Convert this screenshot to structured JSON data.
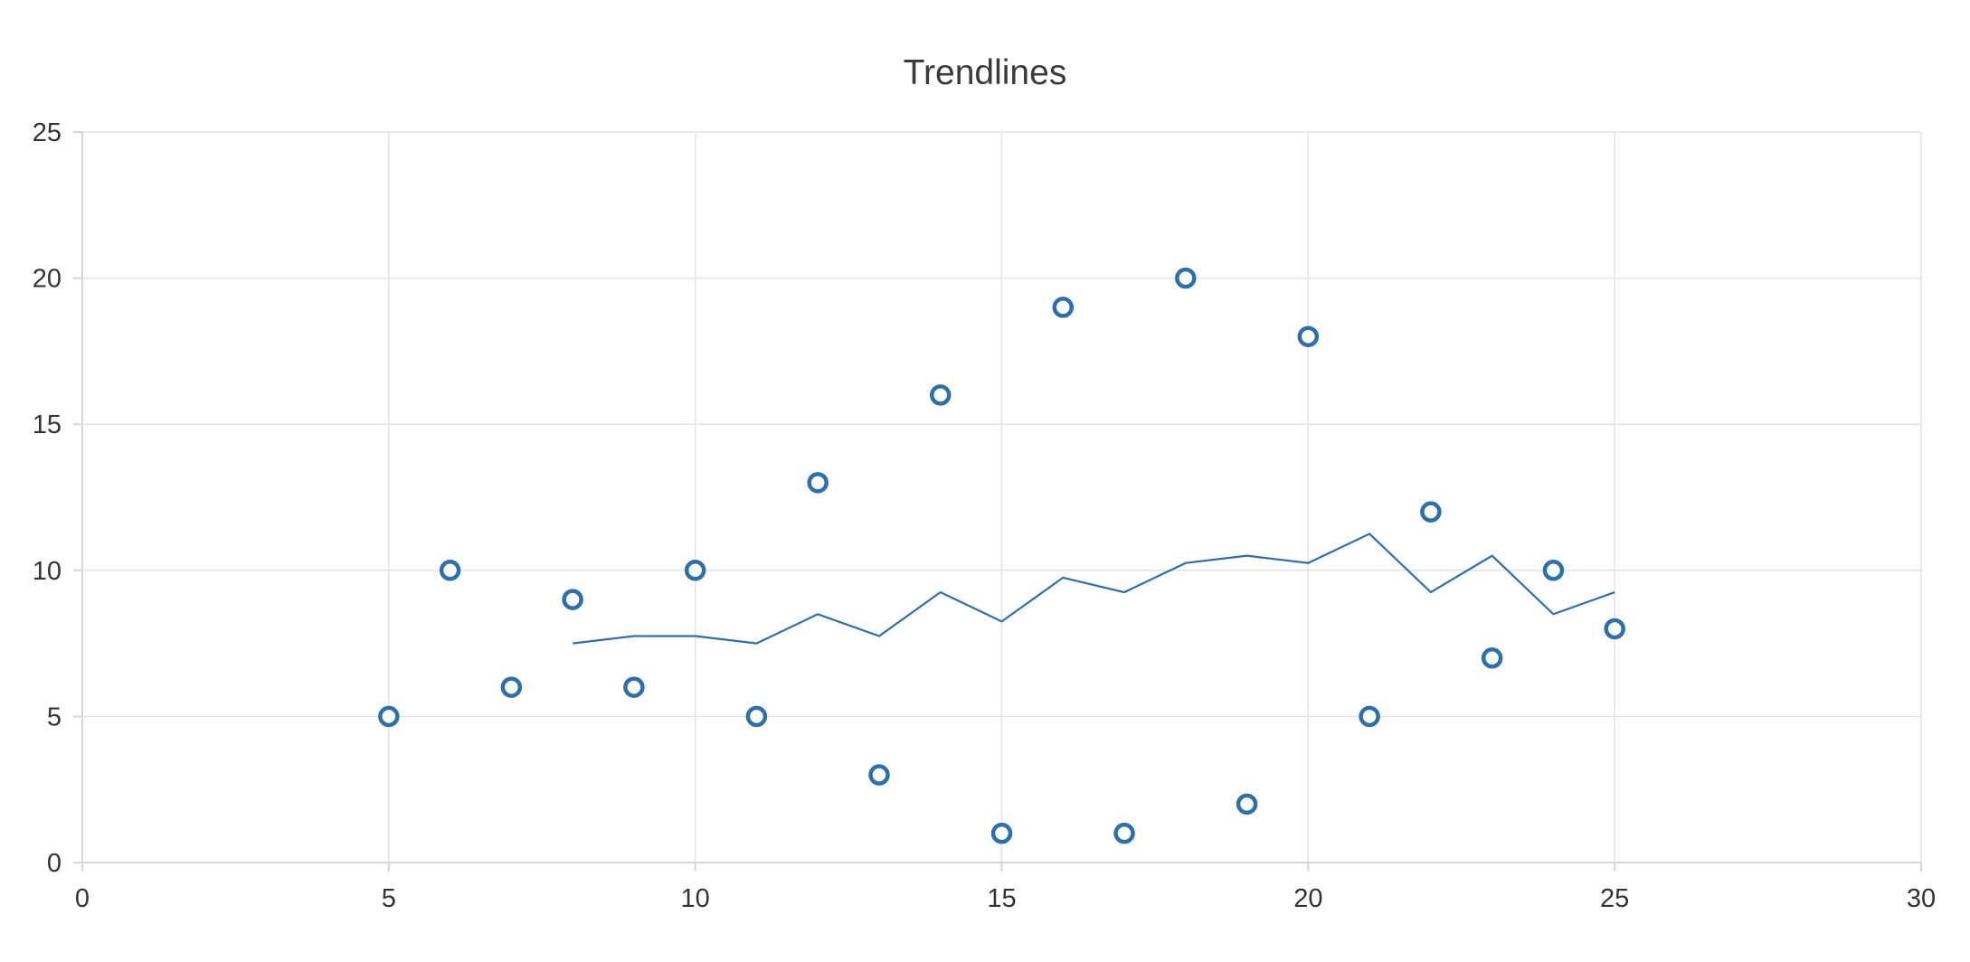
{
  "chart_data": {
    "type": "scatter",
    "title": "Trendlines",
    "xlabel": "",
    "ylabel": "",
    "xlim": [
      0,
      30
    ],
    "ylim": [
      0,
      25
    ],
    "x_ticks": [
      0,
      5,
      10,
      15,
      20,
      25,
      30
    ],
    "y_ticks": [
      0,
      5,
      10,
      15,
      20,
      25
    ],
    "grid": true,
    "legend": "none",
    "series": [
      {
        "type": "scatter",
        "marker": "hollow-circle",
        "color": "#2c6fad",
        "x": [
          5,
          6,
          7,
          8,
          9,
          10,
          11,
          12,
          13,
          14,
          15,
          16,
          17,
          18,
          19,
          20,
          21,
          22,
          23,
          24,
          25
        ],
        "y": [
          5,
          10,
          6,
          9,
          6,
          10,
          5,
          13,
          3,
          16,
          1,
          19,
          1,
          20,
          2,
          18,
          5,
          12,
          7,
          10,
          8
        ]
      },
      {
        "type": "line",
        "style": "trendline-moving-average",
        "color": "#2c6fad",
        "x": [
          8,
          9,
          10,
          11,
          12,
          13,
          14,
          15,
          16,
          17,
          18,
          19,
          20,
          21,
          22,
          23,
          24,
          25
        ],
        "y": [
          7.5,
          7.75,
          7.75,
          7.5,
          8.5,
          7.75,
          9.25,
          8.25,
          9.75,
          9.25,
          10.25,
          10.5,
          10.25,
          11.25,
          9.25,
          10.5,
          8.5,
          9.25
        ]
      }
    ]
  }
}
